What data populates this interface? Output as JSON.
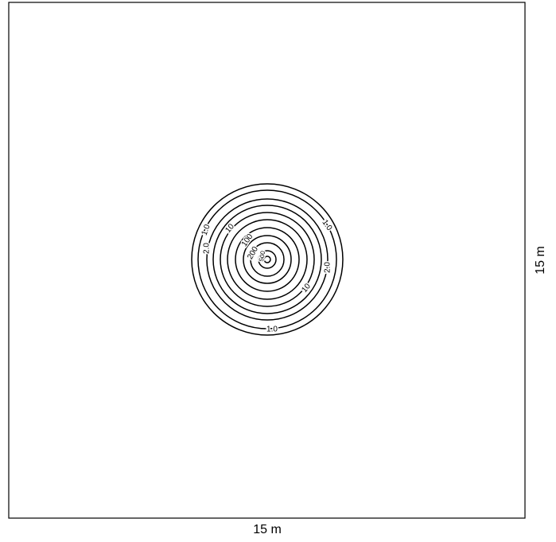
{
  "dimensions": {
    "width": "15 m",
    "height": "15 m"
  },
  "contour_labels": [
    "1.0",
    "1.0",
    "1.0",
    "2.0",
    "2.0",
    "10",
    "10",
    "100",
    "200",
    "500"
  ]
}
